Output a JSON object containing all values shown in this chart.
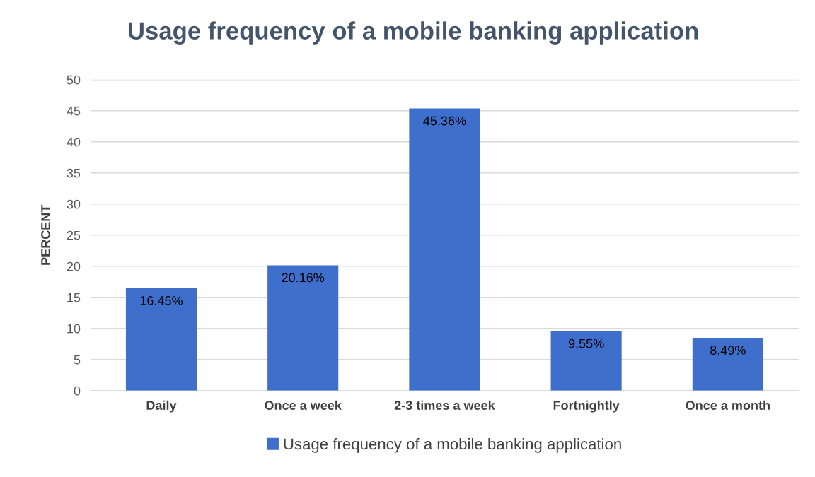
{
  "chart_data": {
    "type": "bar",
    "title": "Usage frequency of a mobile banking application",
    "ylabel": "PERCENT",
    "categories": [
      "Daily",
      "Once a week",
      "2-3 times a week",
      "Fortnightly",
      "Once a month"
    ],
    "series": [
      {
        "name": "Usage frequency of a mobile banking application",
        "color": "#3f6fcc",
        "values": [
          16.45,
          20.16,
          45.36,
          9.55,
          8.49
        ]
      }
    ],
    "value_labels": [
      "16.45%",
      "20.16%",
      "45.36%",
      "9.55%",
      "8.49%"
    ],
    "ylim": [
      0,
      50
    ],
    "yticks": [
      0,
      5,
      10,
      15,
      20,
      25,
      30,
      35,
      40,
      45,
      50
    ],
    "grid": "y",
    "legend": "bottom"
  }
}
